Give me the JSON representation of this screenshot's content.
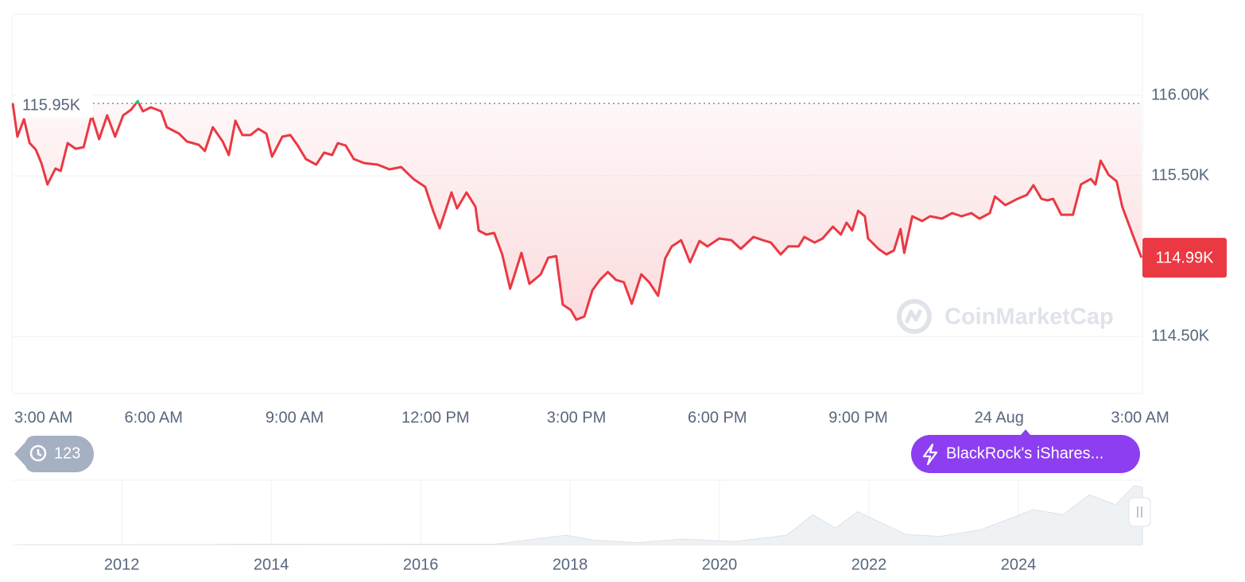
{
  "chart_data": {
    "type": "line",
    "color": "#ea3943",
    "up_color": "#16c784",
    "xlim": [
      0,
      24.05
    ],
    "xticks": [
      {
        "value": 0,
        "label": "3:00 AM"
      },
      {
        "value": 3,
        "label": "6:00 AM"
      },
      {
        "value": 6,
        "label": "9:00 AM"
      },
      {
        "value": 9,
        "label": "12:00 PM"
      },
      {
        "value": 12,
        "label": "3:00 PM"
      },
      {
        "value": 15,
        "label": "6:00 PM"
      },
      {
        "value": 18,
        "label": "9:00 PM"
      },
      {
        "value": 21,
        "label": "24 Aug"
      },
      {
        "value": 24,
        "label": "3:00 AM"
      }
    ],
    "ylim": [
      114144,
      116505
    ],
    "yticks": [
      {
        "value": 114500,
        "label": "114.50K"
      },
      {
        "value": 115500,
        "label": "115.50K"
      },
      {
        "value": 116000,
        "label": "116.00K"
      }
    ],
    "grid": true,
    "reference": {
      "value": 115950,
      "label": "115.95K"
    },
    "last": {
      "value": 114990,
      "label": "114.99K"
    },
    "x": [
      0,
      0.1,
      0.24,
      0.36,
      0.49,
      0.61,
      0.74,
      0.91,
      1.02,
      1.17,
      1.34,
      1.51,
      1.68,
      1.84,
      2.01,
      2.18,
      2.35,
      2.52,
      2.66,
      2.77,
      2.94,
      3.16,
      3.28,
      3.54,
      3.71,
      3.96,
      4.09,
      4.26,
      4.47,
      4.6,
      4.74,
      4.89,
      5.06,
      5.23,
      5.4,
      5.52,
      5.74,
      5.91,
      6.07,
      6.24,
      6.46,
      6.63,
      6.8,
      6.92,
      7.09,
      7.26,
      7.48,
      7.77,
      8.02,
      8.27,
      8.53,
      8.78,
      8.95,
      9.09,
      9.34,
      9.46,
      9.66,
      9.85,
      9.92,
      10.08,
      10.25,
      10.42,
      10.59,
      10.83,
      11.0,
      11.24,
      11.4,
      11.57,
      11.71,
      11.88,
      12.0,
      12.17,
      12.34,
      12.5,
      12.67,
      12.84,
      13.01,
      13.18,
      13.38,
      13.55,
      13.74,
      13.89,
      14.03,
      14.23,
      14.42,
      14.62,
      14.79,
      15.04,
      15.3,
      15.5,
      15.77,
      15.97,
      16.14,
      16.35,
      16.51,
      16.73,
      16.85,
      17.07,
      17.24,
      17.46,
      17.63,
      17.75,
      17.87,
      18.0,
      18.14,
      18.21,
      18.43,
      18.6,
      18.76,
      18.9,
      18.98,
      19.15,
      19.36,
      19.53,
      19.78,
      20.0,
      20.2,
      20.41,
      20.58,
      20.8,
      20.91,
      21.13,
      21.39,
      21.59,
      21.73,
      21.9,
      22.03,
      22.15,
      22.32,
      22.57,
      22.74,
      22.95,
      23.05,
      23.16,
      23.33,
      23.5,
      23.62,
      23.84,
      24.03
    ],
    "values": [
      115950,
      115743,
      115852,
      115703,
      115663,
      115579,
      115446,
      115545,
      115530,
      115703,
      115668,
      115678,
      115876,
      115728,
      115876,
      115743,
      115876,
      115911,
      115965,
      115901,
      115926,
      115901,
      115802,
      115762,
      115713,
      115693,
      115654,
      115802,
      115713,
      115629,
      115842,
      115753,
      115753,
      115792,
      115762,
      115619,
      115743,
      115753,
      115688,
      115604,
      115569,
      115644,
      115629,
      115703,
      115688,
      115604,
      115579,
      115569,
      115540,
      115554,
      115480,
      115431,
      115282,
      115173,
      115396,
      115297,
      115396,
      115307,
      115159,
      115134,
      115144,
      115010,
      114797,
      115020,
      114827,
      114886,
      114990,
      115000,
      114698,
      114664,
      114604,
      114624,
      114787,
      114852,
      114901,
      114852,
      114837,
      114703,
      114886,
      114837,
      114753,
      114985,
      115060,
      115099,
      114961,
      115094,
      115060,
      115109,
      115099,
      115045,
      115119,
      115099,
      115084,
      115010,
      115060,
      115060,
      115119,
      115084,
      115109,
      115183,
      115134,
      115208,
      115159,
      115282,
      115248,
      115109,
      115045,
      115010,
      115035,
      115168,
      115020,
      115248,
      115218,
      115248,
      115233,
      115267,
      115248,
      115267,
      115233,
      115267,
      115371,
      115317,
      115356,
      115381,
      115441,
      115356,
      115347,
      115356,
      115257,
      115257,
      115446,
      115480,
      115446,
      115594,
      115505,
      115466,
      115307,
      115134,
      114990
    ],
    "watermark": "CoinMarketCap",
    "history_count": 123,
    "news": "BlackRock's iShares...",
    "navigator": {
      "type": "area",
      "xlim": [
        2010.53,
        2025.66
      ],
      "ylim": [
        0,
        129000
      ],
      "xticks": [
        2012,
        2014,
        2016,
        2018,
        2020,
        2022,
        2024
      ],
      "x": [
        2010.6,
        2013,
        2013.9,
        2015,
        2017,
        2017.95,
        2018.3,
        2018.9,
        2019.5,
        2020.2,
        2020.9,
        2021.25,
        2021.55,
        2021.85,
        2022.5,
        2022.95,
        2023.5,
        2024.2,
        2024.6,
        2024.95,
        2025.3,
        2025.55,
        2025.66
      ],
      "values": [
        0,
        100,
        1000,
        300,
        1000,
        19000,
        9000,
        4000,
        11000,
        6000,
        19000,
        60000,
        33000,
        66000,
        20000,
        16500,
        30000,
        70000,
        60000,
        100000,
        80000,
        118000,
        115000
      ]
    }
  }
}
